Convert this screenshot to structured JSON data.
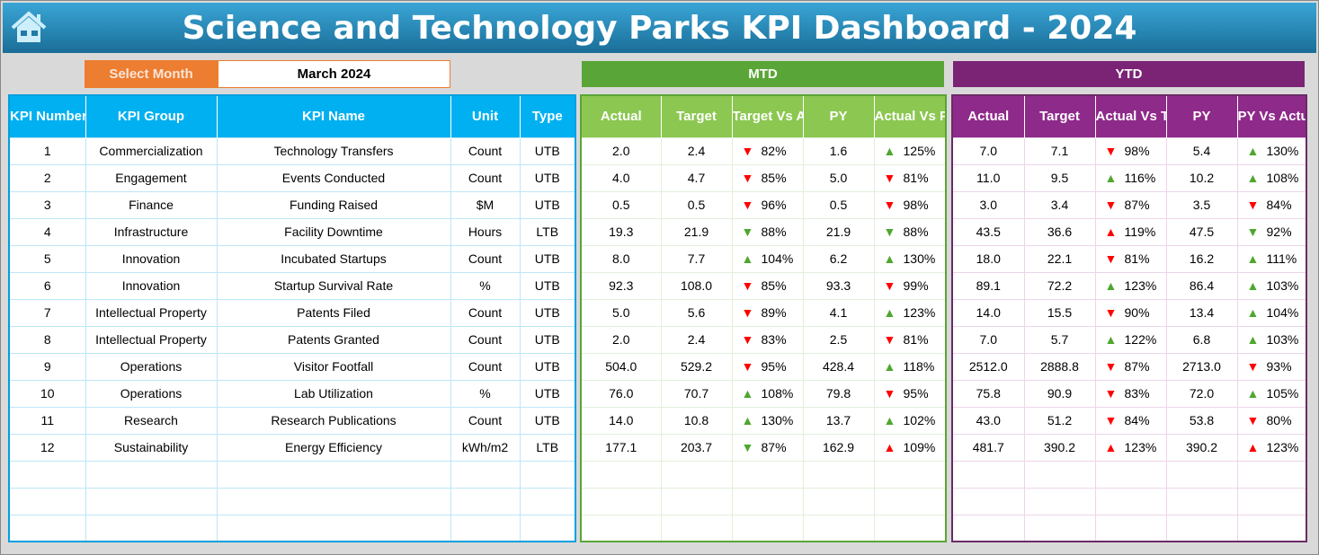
{
  "header": {
    "title": "Science and Technology Parks KPI Dashboard - 2024",
    "home_icon": "home-icon"
  },
  "selector": {
    "label": "Select Month",
    "value": "March 2024"
  },
  "sections": {
    "mtd": "MTD",
    "ytd": "YTD"
  },
  "colors": {
    "header": "#1a6e98",
    "select": "#ed7d31",
    "mtd": "#8cc751",
    "ytd": "#8e2a8a",
    "kpi": "#00b0f0",
    "good": "#4ea72e",
    "bad": "#ff0000"
  },
  "kpi_columns": [
    "KPI Number",
    "KPI Group",
    "KPI Name",
    "Unit",
    "Type"
  ],
  "mtd_columns": [
    "Actual",
    "Target",
    "Target Vs Actual",
    "PY",
    "Actual Vs PY"
  ],
  "ytd_columns": [
    "Actual",
    "Target",
    "Actual Vs Target",
    "PY",
    "PY Vs Actual"
  ],
  "rows": [
    {
      "kpi": [
        "1",
        "Commercialization",
        "Technology Transfers",
        "Count",
        "UTB"
      ],
      "mtd": [
        "2.0",
        "2.4",
        [
          "down",
          "bad",
          "82%"
        ],
        "1.6",
        [
          "up",
          "good",
          "125%"
        ]
      ],
      "ytd": [
        "7.0",
        "7.1",
        [
          "down",
          "bad",
          "98%"
        ],
        "5.4",
        [
          "up",
          "good",
          "130%"
        ]
      ]
    },
    {
      "kpi": [
        "2",
        "Engagement",
        "Events Conducted",
        "Count",
        "UTB"
      ],
      "mtd": [
        "4.0",
        "4.7",
        [
          "down",
          "bad",
          "85%"
        ],
        "5.0",
        [
          "down",
          "bad",
          "81%"
        ]
      ],
      "ytd": [
        "11.0",
        "9.5",
        [
          "up",
          "good",
          "116%"
        ],
        "10.2",
        [
          "up",
          "good",
          "108%"
        ]
      ]
    },
    {
      "kpi": [
        "3",
        "Finance",
        "Funding Raised",
        "$M",
        "UTB"
      ],
      "mtd": [
        "0.5",
        "0.5",
        [
          "down",
          "bad",
          "96%"
        ],
        "0.5",
        [
          "down",
          "bad",
          "98%"
        ]
      ],
      "ytd": [
        "3.0",
        "3.4",
        [
          "down",
          "bad",
          "87%"
        ],
        "3.5",
        [
          "down",
          "bad",
          "84%"
        ]
      ]
    },
    {
      "kpi": [
        "4",
        "Infrastructure",
        "Facility Downtime",
        "Hours",
        "LTB"
      ],
      "mtd": [
        "19.3",
        "21.9",
        [
          "down",
          "good",
          "88%"
        ],
        "21.9",
        [
          "down",
          "good",
          "88%"
        ]
      ],
      "ytd": [
        "43.5",
        "36.6",
        [
          "up",
          "bad",
          "119%"
        ],
        "47.5",
        [
          "down",
          "good",
          "92%"
        ]
      ]
    },
    {
      "kpi": [
        "5",
        "Innovation",
        "Incubated Startups",
        "Count",
        "UTB"
      ],
      "mtd": [
        "8.0",
        "7.7",
        [
          "up",
          "good",
          "104%"
        ],
        "6.2",
        [
          "up",
          "good",
          "130%"
        ]
      ],
      "ytd": [
        "18.0",
        "22.1",
        [
          "down",
          "bad",
          "81%"
        ],
        "16.2",
        [
          "up",
          "good",
          "111%"
        ]
      ]
    },
    {
      "kpi": [
        "6",
        "Innovation",
        "Startup Survival Rate",
        "%",
        "UTB"
      ],
      "mtd": [
        "92.3",
        "108.0",
        [
          "down",
          "bad",
          "85%"
        ],
        "93.3",
        [
          "down",
          "bad",
          "99%"
        ]
      ],
      "ytd": [
        "89.1",
        "72.2",
        [
          "up",
          "good",
          "123%"
        ],
        "86.4",
        [
          "up",
          "good",
          "103%"
        ]
      ]
    },
    {
      "kpi": [
        "7",
        "Intellectual Property",
        "Patents Filed",
        "Count",
        "UTB"
      ],
      "mtd": [
        "5.0",
        "5.6",
        [
          "down",
          "bad",
          "89%"
        ],
        "4.1",
        [
          "up",
          "good",
          "123%"
        ]
      ],
      "ytd": [
        "14.0",
        "15.5",
        [
          "down",
          "bad",
          "90%"
        ],
        "13.4",
        [
          "up",
          "good",
          "104%"
        ]
      ]
    },
    {
      "kpi": [
        "8",
        "Intellectual Property",
        "Patents Granted",
        "Count",
        "UTB"
      ],
      "mtd": [
        "2.0",
        "2.4",
        [
          "down",
          "bad",
          "83%"
        ],
        "2.5",
        [
          "down",
          "bad",
          "81%"
        ]
      ],
      "ytd": [
        "7.0",
        "5.7",
        [
          "up",
          "good",
          "122%"
        ],
        "6.8",
        [
          "up",
          "good",
          "103%"
        ]
      ]
    },
    {
      "kpi": [
        "9",
        "Operations",
        "Visitor Footfall",
        "Count",
        "UTB"
      ],
      "mtd": [
        "504.0",
        "529.2",
        [
          "down",
          "bad",
          "95%"
        ],
        "428.4",
        [
          "up",
          "good",
          "118%"
        ]
      ],
      "ytd": [
        "2512.0",
        "2888.8",
        [
          "down",
          "bad",
          "87%"
        ],
        "2713.0",
        [
          "down",
          "bad",
          "93%"
        ]
      ]
    },
    {
      "kpi": [
        "10",
        "Operations",
        "Lab Utilization",
        "%",
        "UTB"
      ],
      "mtd": [
        "76.0",
        "70.7",
        [
          "up",
          "good",
          "108%"
        ],
        "79.8",
        [
          "down",
          "bad",
          "95%"
        ]
      ],
      "ytd": [
        "75.8",
        "90.9",
        [
          "down",
          "bad",
          "83%"
        ],
        "72.0",
        [
          "up",
          "good",
          "105%"
        ]
      ]
    },
    {
      "kpi": [
        "11",
        "Research",
        "Research Publications",
        "Count",
        "UTB"
      ],
      "mtd": [
        "14.0",
        "10.8",
        [
          "up",
          "good",
          "130%"
        ],
        "13.7",
        [
          "up",
          "good",
          "102%"
        ]
      ],
      "ytd": [
        "43.0",
        "51.2",
        [
          "down",
          "bad",
          "84%"
        ],
        "53.8",
        [
          "down",
          "bad",
          "80%"
        ]
      ]
    },
    {
      "kpi": [
        "12",
        "Sustainability",
        "Energy Efficiency",
        "kWh/m2",
        "LTB"
      ],
      "mtd": [
        "177.1",
        "203.7",
        [
          "down",
          "good",
          "87%"
        ],
        "162.9",
        [
          "up",
          "bad",
          "109%"
        ]
      ],
      "ytd": [
        "481.7",
        "390.2",
        [
          "up",
          "bad",
          "123%"
        ],
        "390.2",
        [
          "up",
          "bad",
          "123%"
        ]
      ]
    }
  ]
}
